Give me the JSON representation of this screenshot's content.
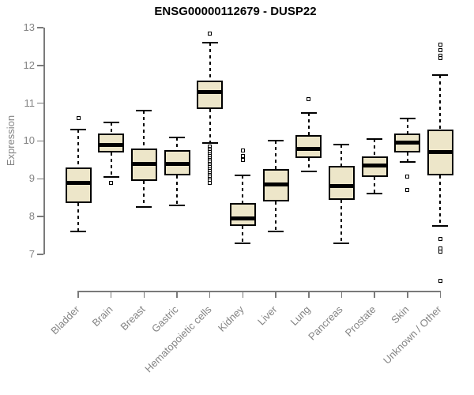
{
  "chart_data": {
    "type": "box",
    "title": "ENSG00000112679 - DUSP22",
    "xlabel": "",
    "ylabel": "Expression",
    "ylim": [
      7,
      13
    ],
    "yticks": [
      7,
      8,
      9,
      10,
      11,
      12,
      13
    ],
    "grid": false,
    "legend": "none",
    "outlier_marker": "open-square",
    "whisker_style": "dashed",
    "categories": [
      "Bladder",
      "Brain",
      "Breast",
      "Gastric",
      "Hematopoietic cells",
      "Kidney",
      "Liver",
      "Lung",
      "Pancreas",
      "Prostate",
      "Skin",
      "Unknown / Other"
    ],
    "boxes": [
      {
        "category": "Bladder",
        "low": 7.6,
        "q1": 8.35,
        "median": 8.9,
        "q3": 9.3,
        "high": 10.3,
        "outliers": [
          10.6
        ]
      },
      {
        "category": "Brain",
        "low": 9.05,
        "q1": 9.7,
        "median": 9.9,
        "q3": 10.2,
        "high": 10.5,
        "outliers": [
          8.9
        ]
      },
      {
        "category": "Breast",
        "low": 8.25,
        "q1": 8.95,
        "median": 9.4,
        "q3": 9.8,
        "high": 10.8,
        "outliers": []
      },
      {
        "category": "Gastric",
        "low": 8.3,
        "q1": 9.1,
        "median": 9.4,
        "q3": 9.75,
        "high": 10.1,
        "outliers": []
      },
      {
        "category": "Hematopoietic cells",
        "low": 9.95,
        "q1": 10.85,
        "median": 11.3,
        "q3": 11.6,
        "high": 12.6,
        "outliers": [
          12.85,
          9.85,
          9.8,
          9.75,
          9.7,
          9.65,
          9.6,
          9.55,
          9.5,
          9.45,
          9.4,
          9.35,
          9.3,
          9.25,
          9.2,
          9.15,
          9.1,
          9.05,
          9.0,
          8.95,
          8.9
        ]
      },
      {
        "category": "Kidney",
        "low": 7.3,
        "q1": 7.75,
        "median": 7.95,
        "q3": 8.35,
        "high": 9.1,
        "outliers": [
          9.75,
          9.6,
          9.5
        ]
      },
      {
        "category": "Liver",
        "low": 7.6,
        "q1": 8.4,
        "median": 8.85,
        "q3": 9.25,
        "high": 10.0,
        "outliers": []
      },
      {
        "category": "Lung",
        "low": 9.2,
        "q1": 9.55,
        "median": 9.8,
        "q3": 10.15,
        "high": 10.75,
        "outliers": [
          11.1
        ]
      },
      {
        "category": "Pancreas",
        "low": 7.3,
        "q1": 8.45,
        "median": 8.8,
        "q3": 9.35,
        "high": 9.9,
        "outliers": []
      },
      {
        "category": "Prostate",
        "low": 8.6,
        "q1": 9.05,
        "median": 9.35,
        "q3": 9.6,
        "high": 10.05,
        "outliers": []
      },
      {
        "category": "Skin",
        "low": 9.45,
        "q1": 9.7,
        "median": 9.95,
        "q3": 10.2,
        "high": 10.6,
        "outliers": [
          9.05,
          8.7
        ]
      },
      {
        "category": "Unknown / Other",
        "low": 7.75,
        "q1": 9.1,
        "median": 9.7,
        "q3": 10.3,
        "high": 11.75,
        "outliers": [
          12.55,
          12.4,
          12.25,
          12.2,
          7.4,
          7.15,
          7.08,
          6.3
        ]
      }
    ],
    "colors": {
      "box_fill": "#ede6c9",
      "box_border": "#000000",
      "median": "#000000",
      "axis": "#7a7a7a",
      "tick_label": "#848484",
      "title": "#000000",
      "background": "#ffffff"
    }
  }
}
